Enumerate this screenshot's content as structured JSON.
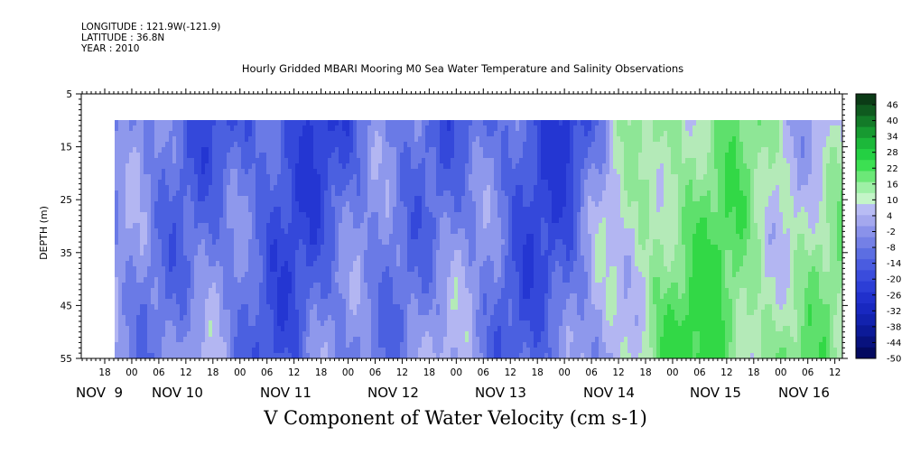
{
  "header": {
    "longitude": "LONGITUDE : 121.9W(-121.9)",
    "latitude": "LATITUDE : 36.8N",
    "year": "YEAR : 2010"
  },
  "chart_data": {
    "type": "heatmap",
    "title": "Hourly Gridded MBARI Mooring M0 Sea Water Temperature and Salinity Observations",
    "xlabel": "V Component of Water Velocity (cm s-1)",
    "ylabel": "DEPTH (m)",
    "y_range": [
      5,
      55
    ],
    "y_ticks": [
      "5",
      "15",
      "25",
      "35",
      "45",
      "55"
    ],
    "x_hour_ticks": [
      "18",
      "00",
      "06",
      "12",
      "18",
      "00",
      "06",
      "12",
      "18",
      "00",
      "06",
      "12",
      "18",
      "00",
      "06",
      "12",
      "18",
      "00",
      "06",
      "12",
      "18",
      "00",
      "06",
      "12",
      "18",
      "00",
      "06",
      "12"
    ],
    "x_day_labels": [
      "NOV  9",
      "NOV 10",
      "NOV 11",
      "NOV 12",
      "NOV 13",
      "NOV 14",
      "NOV 15",
      "NOV 16"
    ],
    "data_depth_range": [
      10,
      55
    ],
    "colorbar_labels": [
      "46",
      "40",
      "34",
      "28",
      "22",
      "16",
      "10",
      "4",
      "-2",
      "-8",
      "-14",
      "-20",
      "-26",
      "-32",
      "-38",
      "-44",
      "-50"
    ],
    "colorbar_colors": [
      "#0b3b16",
      "#0f5a1f",
      "#137a28",
      "#179a31",
      "#1cb83a",
      "#24d043",
      "#3ce052",
      "#6ce878",
      "#9ef0a6",
      "#c4f5c8",
      "#b8bcf4",
      "#a4a8ee",
      "#8a92ea",
      "#7480e6",
      "#5c6ee2",
      "#4a5ce0",
      "#3a4cdc",
      "#2c3ed6",
      "#2030cc",
      "#1828c0",
      "#1222ae",
      "#0c1a98",
      "#08127e",
      "#040a60"
    ],
    "approx_regions": [
      {
        "from_hour": 0,
        "to_hour": 111,
        "dominant": "negative (blue)",
        "v_min": -38,
        "v_max": 4
      },
      {
        "from_hour": 111,
        "to_hour": 135,
        "dominant": "mixed",
        "v_min": -14,
        "v_max": 16
      },
      {
        "from_hour": 135,
        "to_hour": 171,
        "dominant": "positive (green)",
        "v_min": -8,
        "v_max": 28
      }
    ]
  }
}
